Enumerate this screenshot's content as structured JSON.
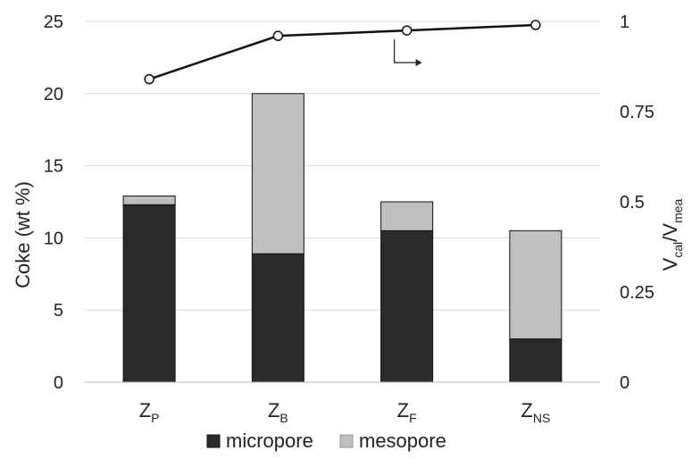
{
  "chart_data": {
    "type": "bar",
    "stacked": true,
    "categories": [
      {
        "main": "Z",
        "sub": "P"
      },
      {
        "main": "Z",
        "sub": "B"
      },
      {
        "main": "Z",
        "sub": "F"
      },
      {
        "main": "Z",
        "sub": "NS"
      }
    ],
    "series": [
      {
        "name": "micropore",
        "values": [
          12.3,
          8.9,
          10.5,
          3.0
        ],
        "color": "#2b2b2b"
      },
      {
        "name": "mesopore",
        "values": [
          0.6,
          11.1,
          2.0,
          7.5
        ],
        "color": "#bfbfbf"
      }
    ],
    "line_series": {
      "axis": "right",
      "values": [
        0.84,
        0.96,
        0.975,
        0.99
      ],
      "color": "#111111",
      "marker": "open-circle"
    },
    "ylabel": "Coke (wt %)",
    "ylim": [
      0,
      25
    ],
    "yticks": [
      0,
      5,
      10,
      15,
      20,
      25
    ],
    "y2label": {
      "main": "V",
      "sub1": "cal",
      "mid": "/V",
      "sub2": "mea"
    },
    "y2lim": [
      0,
      1
    ],
    "y2ticks": [
      "0",
      "0.25",
      "0.5",
      "0.75",
      "1"
    ],
    "grid": true,
    "legend_position": "bottom",
    "annotation": "arrow pointing right toward secondary axis"
  }
}
